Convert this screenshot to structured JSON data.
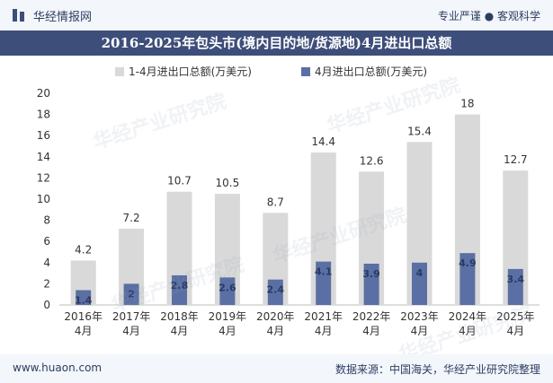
{
  "header": {
    "brand": "华经情报网",
    "tagline": "专业严谨 ● 客观科学"
  },
  "title": "2016-2025年包头市(境内目的地/货源地)4月进出口总额",
  "footer": {
    "website": "www.huaon.com",
    "source": "数据来源：中国海关，华经产业研究院整理"
  },
  "watermark": "华经产业研究院",
  "colors": {
    "series_total": "#d9d9d9",
    "series_april": "#5a6fa3",
    "header_bg": "#3d4e7a",
    "bar_bg": "#f3f6fa"
  },
  "chart_data": {
    "type": "bar",
    "categories": [
      "2016年\n4月",
      "2017年\n4月",
      "2018年\n4月",
      "2019年\n4月",
      "2020年\n4月",
      "2021年\n4月",
      "2022年\n4月",
      "2023年\n4月",
      "2024年\n4月",
      "2025年\n4月"
    ],
    "series": [
      {
        "name": "1-4月进出口总额(万美元)",
        "values": [
          4.2,
          7.2,
          10.7,
          10.5,
          8.7,
          14.4,
          12.6,
          15.4,
          18,
          12.7
        ],
        "labels": [
          "4.2",
          "7.2",
          "10.7",
          "10.5",
          "8.7",
          "14.4",
          "12.6",
          "15.4",
          "18",
          "12.7"
        ]
      },
      {
        "name": "4月进出口总额(万美元)",
        "values": [
          1.4,
          2,
          2.8,
          2.6,
          2.4,
          4.1,
          3.9,
          4,
          4.9,
          3.4
        ],
        "labels": [
          "1.4",
          "2",
          "2.8",
          "2.6",
          "2.4",
          "4.1",
          "3.9",
          "4",
          "4.9",
          "3.4"
        ]
      }
    ],
    "ylim": [
      0,
      20
    ],
    "yticks": [
      0,
      2,
      4,
      6,
      8,
      10,
      12,
      14,
      16,
      18,
      20
    ],
    "legend_position": "top-center",
    "grid": false
  }
}
